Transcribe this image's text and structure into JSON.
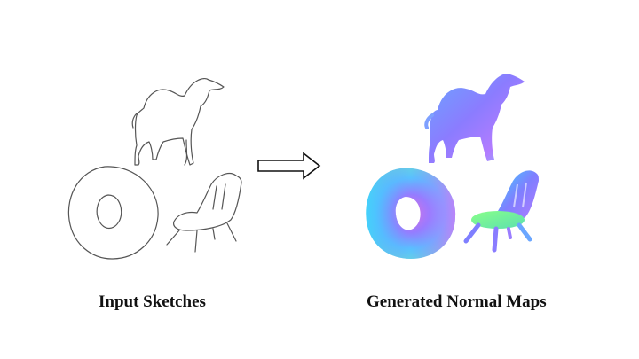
{
  "captions": {
    "input": "Input Sketches",
    "output": "Generated Normal Maps"
  },
  "colors": {
    "sketch_stroke": "#555555",
    "arrow_stroke": "#111111",
    "normal_map_palette": [
      "#7f7fff",
      "#b07cff",
      "#6aa6ff",
      "#6cf0c8",
      "#3fd0ff",
      "#d36cff",
      "#88ff88"
    ]
  },
  "items": [
    {
      "name": "camel",
      "kind": "sketch"
    },
    {
      "name": "torus",
      "kind": "sketch"
    },
    {
      "name": "chair",
      "kind": "sketch"
    },
    {
      "name": "camel",
      "kind": "normal-map"
    },
    {
      "name": "torus",
      "kind": "normal-map"
    },
    {
      "name": "chair",
      "kind": "normal-map"
    }
  ]
}
